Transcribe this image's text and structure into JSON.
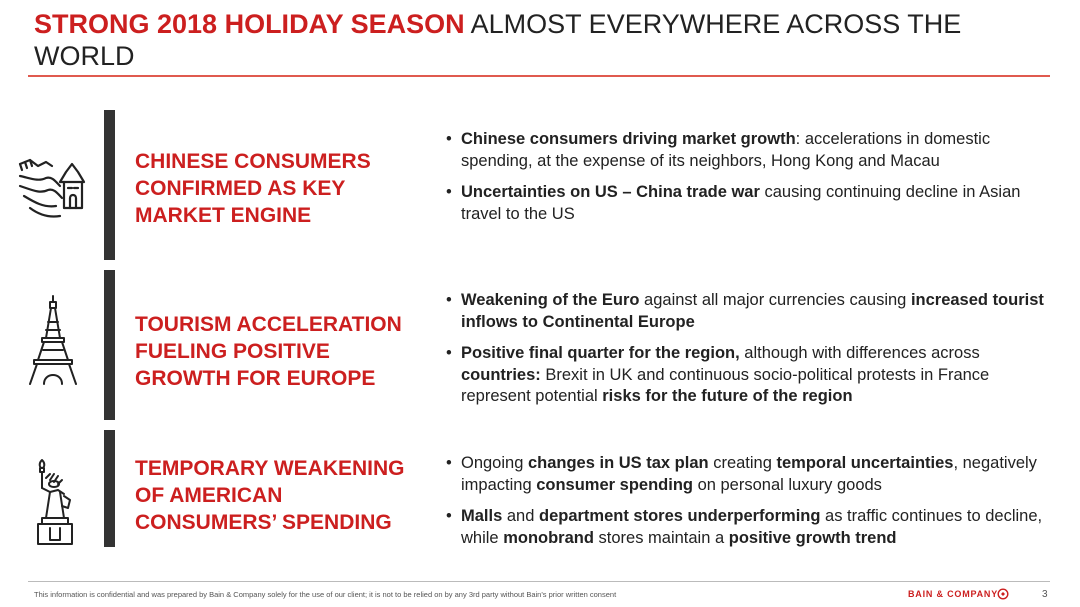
{
  "title": {
    "highlight": "STRONG 2018 HOLIDAY SEASON",
    "rest": " ALMOST EVERYWHERE ACROSS THE WORLD"
  },
  "sections": [
    {
      "icon": "great-wall-icon",
      "heading": [
        "CHINESE CONSUMERS",
        "CONFIRMED AS KEY",
        "MARKET ENGINE"
      ],
      "bullets": [
        [
          {
            "t": "Chinese consumers driving market growth",
            "b": true
          },
          {
            "t": ": accelerations in domestic spending, at the expense of its neighbors, Hong Kong and Macau",
            "b": false
          }
        ],
        [
          {
            "t": "Uncertainties on US – China trade war",
            "b": true
          },
          {
            "t": " causing continuing decline in Asian travel to the US",
            "b": false
          }
        ]
      ]
    },
    {
      "icon": "eiffel-tower-icon",
      "heading": [
        "TOURISM ACCELERATION",
        "FUELING POSITIVE",
        "GROWTH FOR EUROPE"
      ],
      "bullets": [
        [
          {
            "t": "Weakening of the Euro",
            "b": true
          },
          {
            "t": " against all major currencies causing ",
            "b": false
          },
          {
            "t": "increased tourist inflows to Continental Europe",
            "b": true
          }
        ],
        [
          {
            "t": "Positive final quarter for the region,",
            "b": true
          },
          {
            "t": " although with differences across ",
            "b": false
          },
          {
            "t": "countries:",
            "b": true
          },
          {
            "t": " Brexit in UK and continuous socio-political protests in France represent potential ",
            "b": false
          },
          {
            "t": "risks for the future of the region",
            "b": true
          }
        ]
      ]
    },
    {
      "icon": "statue-of-liberty-icon",
      "heading": [
        "TEMPORARY WEAKENING",
        "OF AMERICAN",
        "CONSUMERS’ SPENDING"
      ],
      "bullets": [
        [
          {
            "t": "Ongoing ",
            "b": false
          },
          {
            "t": "changes in US tax plan",
            "b": true
          },
          {
            "t": " creating ",
            "b": false
          },
          {
            "t": "temporal uncertainties",
            "b": true
          },
          {
            "t": ", negatively impacting ",
            "b": false
          },
          {
            "t": "consumer spending",
            "b": true
          },
          {
            "t": " on personal luxury goods",
            "b": false
          }
        ],
        [
          {
            "t": "Malls",
            "b": true
          },
          {
            "t": " and ",
            "b": false
          },
          {
            "t": "department stores underperforming",
            "b": true
          },
          {
            "t": " as traffic continues to decline, while ",
            "b": false
          },
          {
            "t": "monobrand",
            "b": true
          },
          {
            "t": " stores maintain a ",
            "b": false
          },
          {
            "t": "positive growth trend",
            "b": true
          }
        ]
      ]
    }
  ],
  "footer": {
    "note": "This information is confidential and was prepared by Bain & Company solely for the use of our client; it is not to be relied on by any 3rd party without Bain's prior written consent",
    "brand": "BAIN & COMPANY",
    "page": "3"
  },
  "colors": {
    "accent": "#cc1f1f",
    "bar": "#333333",
    "rule": "#e05a4f"
  }
}
